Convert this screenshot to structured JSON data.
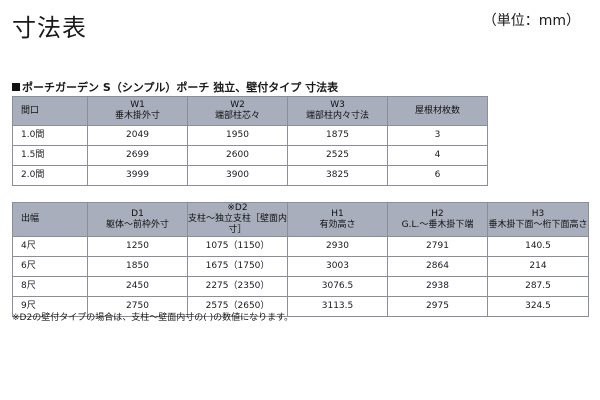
{
  "page_title": "寸法表",
  "unit_note": "（単位：mm）",
  "section_title": "ポーチガーデン S（シンプル）ポーチ 独立、壁付タイプ 寸法表",
  "table1": {
    "headers": [
      {
        "l1": "間口",
        "l2": ""
      },
      {
        "l1": "W1",
        "l2": "垂木掛外寸"
      },
      {
        "l1": "W2",
        "l2": "端部柱芯々"
      },
      {
        "l1": "W3",
        "l2": "端部柱内々寸法"
      },
      {
        "l1": "屋根材枚数",
        "l2": ""
      }
    ],
    "rows": [
      [
        "1.0間",
        "2049",
        "1950",
        "1875",
        "3"
      ],
      [
        "1.5間",
        "2699",
        "2600",
        "2525",
        "4"
      ],
      [
        "2.0間",
        "3999",
        "3900",
        "3825",
        "6"
      ]
    ]
  },
  "table2": {
    "headers": [
      {
        "l1": "出幅",
        "l2": ""
      },
      {
        "l1": "D1",
        "l2": "躯体～前枠外寸"
      },
      {
        "l1": "※D2",
        "l2": "支柱～独立支柱［壁面内寸］"
      },
      {
        "l1": "H1",
        "l2": "有効高さ"
      },
      {
        "l1": "H2",
        "l2": "G.L.～垂木掛下端"
      },
      {
        "l1": "H3",
        "l2": "垂木掛下面～桁下面高さ"
      }
    ],
    "rows": [
      [
        "4尺",
        "1250",
        "1075（1150）",
        "2930",
        "2791",
        "140.5"
      ],
      [
        "6尺",
        "1850",
        "1675（1750）",
        "3003",
        "2864",
        "214"
      ],
      [
        "8尺",
        "2450",
        "2275（2350）",
        "3076.5",
        "2938",
        "287.5"
      ],
      [
        "9尺",
        "2750",
        "2575（2650）",
        "3113.5",
        "2975",
        "324.5"
      ]
    ]
  },
  "footnote": "※D2の壁付タイプの場合は、支柱～壁面内寸の( )の数値になります。"
}
